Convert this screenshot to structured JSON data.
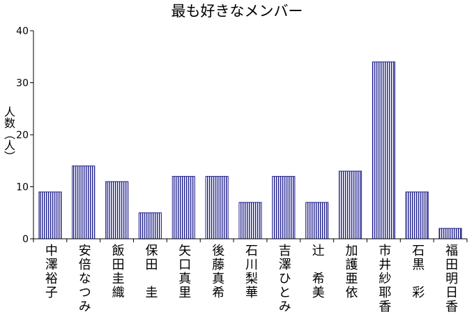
{
  "chart_data": {
    "type": "bar",
    "title": "最も好きなメンバー",
    "xlabel": "",
    "ylabel": "人数（人）",
    "categories": [
      "中澤裕子",
      "安倍なつみ",
      "飯田圭織",
      "保田　圭",
      "矢口真里",
      "後藤真希",
      "石川梨華",
      "吉澤ひとみ",
      "辻　希美",
      "加護亜依",
      "市井紗耶香",
      "石黒　彩",
      "福田明日香"
    ],
    "values": [
      9,
      14,
      11,
      5,
      12,
      12,
      7,
      12,
      7,
      13,
      34,
      9,
      2
    ],
    "ylim": [
      0,
      40
    ],
    "yticks": [
      0,
      10,
      20,
      30,
      40
    ],
    "grid": false,
    "bar_color": "#1c1c8c"
  }
}
